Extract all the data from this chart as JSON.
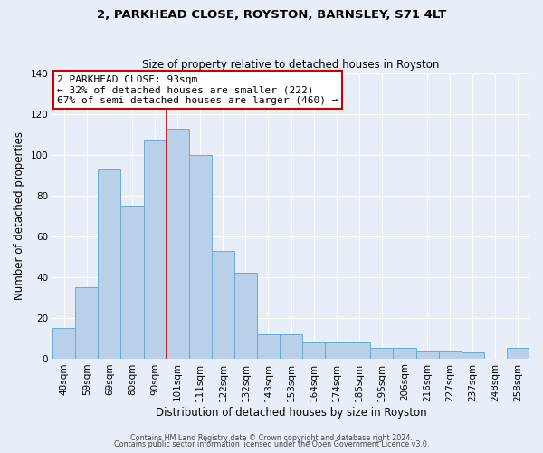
{
  "title": "2, PARKHEAD CLOSE, ROYSTON, BARNSLEY, S71 4LT",
  "subtitle": "Size of property relative to detached houses in Royston",
  "xlabel": "Distribution of detached houses by size in Royston",
  "ylabel": "Number of detached properties",
  "bar_labels": [
    "48sqm",
    "59sqm",
    "69sqm",
    "80sqm",
    "90sqm",
    "101sqm",
    "111sqm",
    "122sqm",
    "132sqm",
    "143sqm",
    "153sqm",
    "164sqm",
    "174sqm",
    "185sqm",
    "195sqm",
    "206sqm",
    "216sqm",
    "227sqm",
    "237sqm",
    "248sqm",
    "258sqm"
  ],
  "bar_values": [
    15,
    35,
    93,
    75,
    107,
    113,
    100,
    53,
    42,
    12,
    12,
    8,
    8,
    8,
    5,
    5,
    4,
    4,
    3,
    0,
    5
  ],
  "bar_color": "#b8d0e8",
  "bar_edge_color": "#6aaad4",
  "ylim": [
    0,
    140
  ],
  "yticks": [
    0,
    20,
    40,
    60,
    80,
    100,
    120,
    140
  ],
  "vline_x": 4.5,
  "vline_color": "#cc0000",
  "annotation_title": "2 PARKHEAD CLOSE: 93sqm",
  "annotation_line1": "← 32% of detached houses are smaller (222)",
  "annotation_line2": "67% of semi-detached houses are larger (460) →",
  "annotation_box_facecolor": "#ffffff",
  "annotation_box_edgecolor": "#cc0000",
  "footer1": "Contains HM Land Registry data © Crown copyright and database right 2024.",
  "footer2": "Contains public sector information licensed under the Open Government Licence v3.0.",
  "fig_facecolor": "#e8eef8",
  "axes_facecolor": "#e8eef8",
  "grid_color": "#ffffff",
  "title_fontsize": 9.5,
  "subtitle_fontsize": 8.5,
  "tick_fontsize": 7.5,
  "axis_label_fontsize": 8.5,
  "annotation_fontsize": 8.0,
  "footer_fontsize": 5.8
}
